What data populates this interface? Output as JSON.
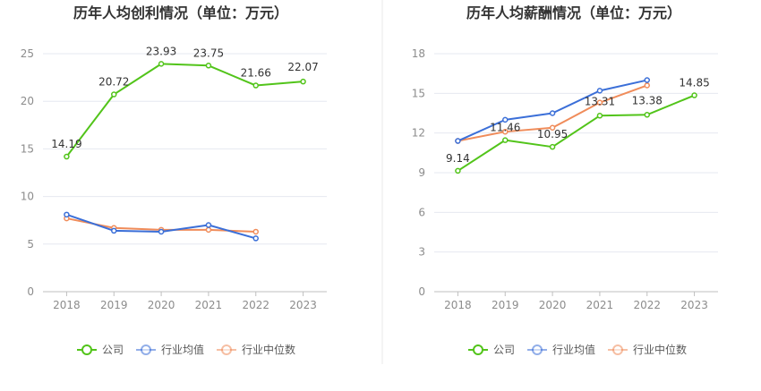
{
  "colors": {
    "company": "#52c41a",
    "industry_avg": "#3b6fd8",
    "industry_median": "#f08c5a",
    "grid": "#e6e8f0",
    "axis": "#bfbfbf",
    "tick_text": "#8c8c8c",
    "label_text": "#333333",
    "title_text": "#333333",
    "divider": "#e8e8e8"
  },
  "chart_data": [
    {
      "type": "line",
      "title": "历年人均创利情况（单位：万元）",
      "categories": [
        "2018",
        "2019",
        "2020",
        "2021",
        "2022",
        "2023"
      ],
      "ylim": [
        0,
        25
      ],
      "yticks": [
        0,
        5,
        10,
        15,
        20,
        25
      ],
      "grid": true,
      "legend_position": "bottom",
      "series": [
        {
          "name": "公司",
          "color_key": "company",
          "values": [
            14.19,
            20.72,
            23.93,
            23.75,
            21.66,
            22.07
          ],
          "labels": [
            "14.19",
            "20.72",
            "23.93",
            "23.75",
            "21.66",
            "22.07"
          ]
        },
        {
          "name": "行业均值",
          "color_key": "industry_avg",
          "values": [
            8.1,
            6.4,
            6.3,
            7.0,
            5.6,
            null
          ]
        },
        {
          "name": "行业中位数",
          "color_key": "industry_median",
          "values": [
            7.7,
            6.7,
            6.5,
            6.5,
            6.3,
            null
          ]
        }
      ]
    },
    {
      "type": "line",
      "title": "历年人均薪酬情况（单位：万元）",
      "categories": [
        "2018",
        "2019",
        "2020",
        "2021",
        "2022",
        "2023"
      ],
      "ylim": [
        0,
        18
      ],
      "yticks": [
        0,
        3,
        6,
        9,
        12,
        15,
        18
      ],
      "grid": true,
      "legend_position": "bottom",
      "series": [
        {
          "name": "公司",
          "color_key": "company",
          "values": [
            9.14,
            11.46,
            10.95,
            13.31,
            13.38,
            14.85
          ],
          "labels": [
            "9.14",
            "11.46",
            "10.95",
            "13.31",
            "13.38",
            "14.85"
          ]
        },
        {
          "name": "行业均值",
          "color_key": "industry_avg",
          "values": [
            11.4,
            13.0,
            13.5,
            15.2,
            16.0,
            null
          ]
        },
        {
          "name": "行业中位数",
          "color_key": "industry_median",
          "values": [
            11.4,
            12.1,
            12.4,
            14.3,
            15.6,
            null
          ]
        }
      ]
    }
  ]
}
